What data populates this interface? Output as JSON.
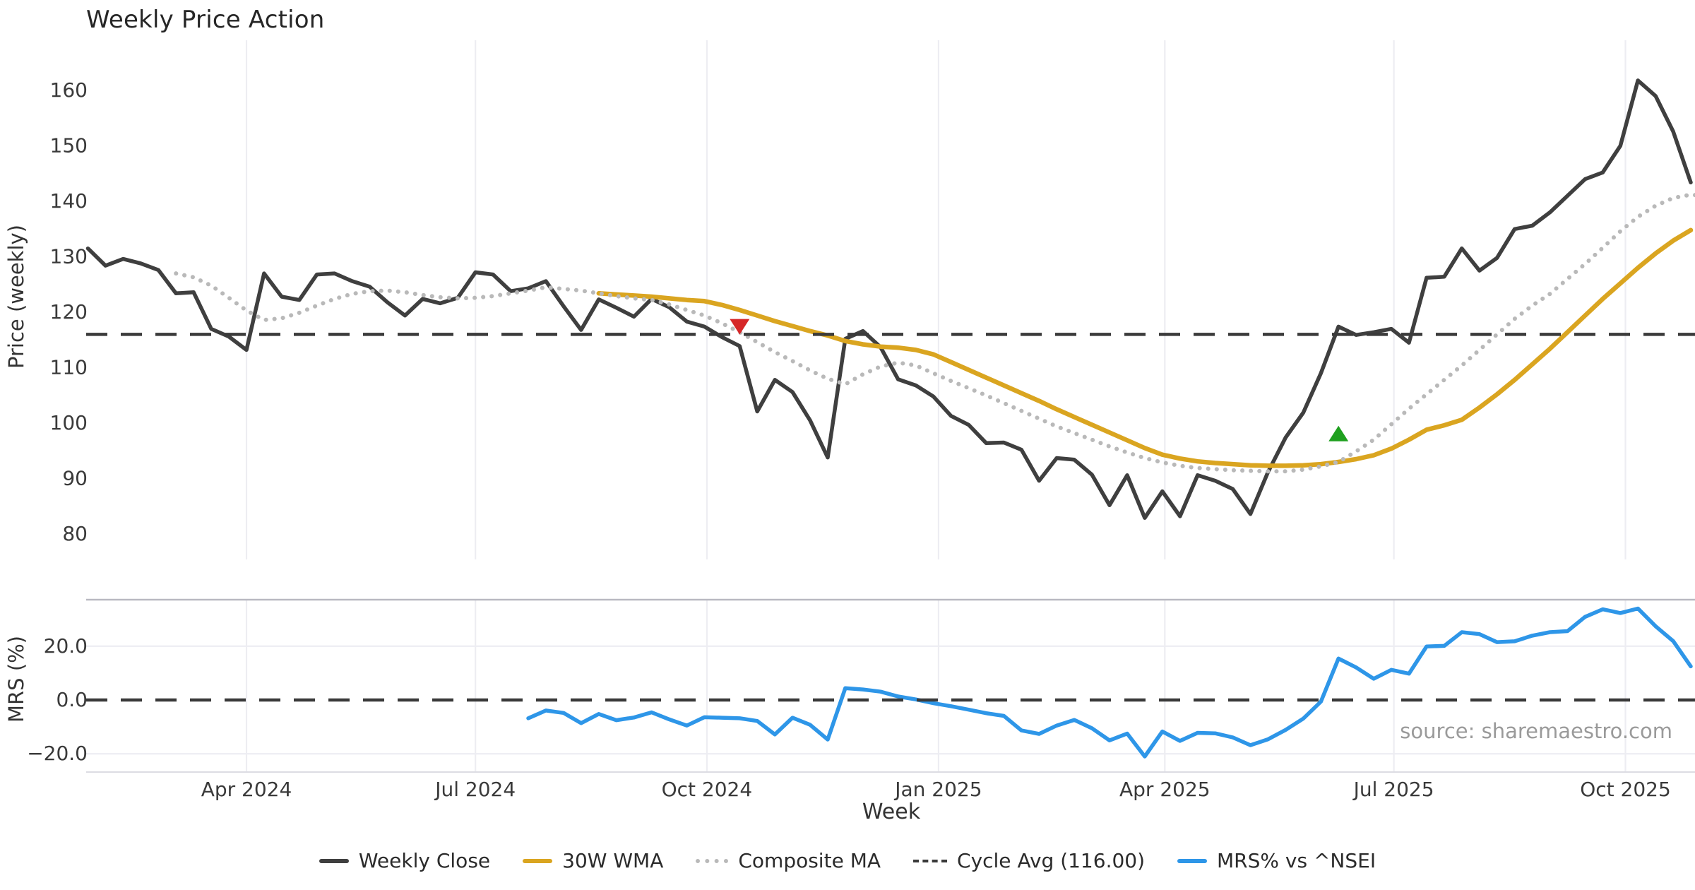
{
  "title": "Weekly Price Action",
  "source": "source: sharemaestro.com",
  "axes": {
    "price": {
      "label": "Price (weekly)",
      "ticks": [
        80,
        90,
        100,
        110,
        120,
        130,
        140,
        150,
        160
      ]
    },
    "mrs": {
      "label": "MRS (%)",
      "ticks": [
        -20,
        0,
        20
      ],
      "tick_labels": [
        "−20.0",
        "0.0",
        "20.0"
      ]
    },
    "x": {
      "label": "Week",
      "tick_labels": [
        "Apr 2024",
        "Jul 2024",
        "Oct 2024",
        "Jan 2025",
        "Apr 2025",
        "Jul 2025",
        "Oct 2025"
      ],
      "tick_weeks": [
        9,
        22,
        35.14,
        48.29,
        61.14,
        74.14,
        87.29
      ]
    }
  },
  "legend": [
    {
      "label": "Weekly Close",
      "color": "#3F3F3F",
      "style": "solid"
    },
    {
      "label": "30W WMA",
      "color": "#DAA520",
      "style": "solid"
    },
    {
      "label": "Composite MA",
      "color": "#B9B9B9",
      "style": "dotted"
    },
    {
      "label": "Cycle Avg (116.00)",
      "color": "#3A3A3A",
      "style": "dashed"
    },
    {
      "label": "MRS% vs ^NSEI",
      "color": "#2E96E8",
      "style": "solid"
    }
  ],
  "chart_data": {
    "type": "line",
    "x_unit": "week_index",
    "weeks_total": 92,
    "panels": [
      {
        "name": "price",
        "ylabel": "Price (weekly)",
        "ylim": [
          75.2,
          169.1
        ],
        "grid": "vertical"
      },
      {
        "name": "mrs",
        "ylabel": "MRS (%)",
        "ylim": [
          -26.8,
          37.3
        ],
        "grid": "both"
      }
    ],
    "series": [
      {
        "name": "Weekly Close",
        "panel": "price",
        "color": "#3F3F3F",
        "style": "solid",
        "width": 5.5,
        "start_week": 0,
        "values": [
          131.5,
          128.4,
          129.6,
          128.8,
          127.6,
          123.4,
          123.6,
          117.0,
          115.6,
          113.2,
          127.0,
          122.8,
          122.2,
          126.8,
          127.0,
          125.6,
          124.6,
          121.8,
          119.4,
          122.4,
          121.6,
          122.6,
          127.2,
          126.8,
          123.8,
          124.3,
          125.6,
          121.1,
          116.8,
          122.3,
          120.8,
          119.2,
          122.4,
          120.9,
          118.3,
          117.4,
          115.5,
          113.9,
          102.1,
          107.8,
          105.6,
          100.5,
          93.8,
          115.2,
          116.6,
          113.7,
          107.9,
          106.8,
          104.8,
          101.3,
          99.7,
          96.4,
          96.5,
          95.2,
          89.6,
          93.7,
          93.4,
          90.7,
          85.2,
          90.6,
          82.9,
          87.7,
          83.2,
          90.6,
          89.6,
          88.1,
          83.6,
          91.2,
          97.4,
          101.9,
          109.0,
          117.4,
          115.9,
          116.4,
          117.0,
          114.5,
          126.2,
          126.4,
          131.5,
          127.5,
          129.8,
          135.0,
          135.6,
          138.0,
          141.0,
          144.0,
          145.2,
          150.0,
          161.8,
          159.0,
          152.6,
          143.4
        ]
      },
      {
        "name": "30W WMA",
        "panel": "price",
        "color": "#DAA520",
        "style": "solid",
        "width": 6.5,
        "start_week": 29,
        "values": [
          123.4,
          123.2,
          123.0,
          122.8,
          122.5,
          122.2,
          122.0,
          121.3,
          120.4,
          119.4,
          118.4,
          117.5,
          116.6,
          115.8,
          114.8,
          114.2,
          113.8,
          113.6,
          113.2,
          112.4,
          111.0,
          109.6,
          108.2,
          106.8,
          105.4,
          104.0,
          102.5,
          101.1,
          99.7,
          98.3,
          96.9,
          95.5,
          94.3,
          93.6,
          93.1,
          92.8,
          92.6,
          92.4,
          92.3,
          92.3,
          92.4,
          92.6,
          93.0,
          93.5,
          94.2,
          95.4,
          97.0,
          98.8,
          99.6,
          100.6,
          102.8,
          105.2,
          107.8,
          110.6,
          113.4,
          116.4,
          119.4,
          122.4,
          125.2,
          128.0,
          130.6,
          132.9,
          134.8
        ]
      },
      {
        "name": "Composite MA",
        "panel": "price",
        "color": "#B9B9B9",
        "style": "dotted",
        "width": 5.5,
        "start_week": 5,
        "values": [
          127.0,
          126.3,
          124.8,
          122.6,
          120.3,
          118.6,
          118.9,
          119.9,
          121.2,
          122.4,
          123.3,
          123.8,
          123.9,
          123.6,
          123.1,
          122.7,
          122.5,
          122.6,
          122.9,
          123.4,
          123.9,
          124.5,
          124.2,
          123.9,
          123.4,
          122.9,
          122.5,
          122.2,
          121.4,
          120.4,
          119.4,
          118.0,
          116.4,
          114.6,
          112.8,
          111.2,
          109.5,
          108.0,
          107.0,
          108.8,
          110.2,
          110.9,
          110.4,
          109.0,
          107.6,
          106.3,
          105.0,
          103.6,
          102.2,
          100.8,
          99.4,
          98.2,
          97.0,
          95.8,
          94.7,
          93.7,
          92.9,
          92.3,
          91.9,
          91.7,
          91.5,
          91.4,
          91.3,
          91.3,
          91.6,
          92.2,
          93.0,
          94.9,
          97.0,
          99.8,
          102.6,
          105.2,
          107.8,
          110.4,
          113.2,
          116.0,
          118.8,
          121.2,
          123.3,
          126.0,
          128.7,
          131.6,
          134.6,
          137.2,
          139.2,
          140.6,
          141.2,
          140.9
        ]
      },
      {
        "name": "Cycle Avg",
        "panel": "price",
        "color": "#3A3A3A",
        "style": "dashed",
        "width": 4.5,
        "constant": 116.0
      },
      {
        "name": "MRS% vs ^NSEI",
        "panel": "mrs",
        "color": "#2E96E8",
        "style": "solid",
        "width": 5.5,
        "start_week": 25,
        "values": [
          -6.8,
          -3.9,
          -4.8,
          -8.6,
          -5.2,
          -7.5,
          -6.5,
          -4.6,
          -7.2,
          -9.5,
          -6.4,
          -6.6,
          -6.8,
          -7.8,
          -12.8,
          -6.6,
          -9.2,
          -14.7,
          4.4,
          3.9,
          3.1,
          1.3,
          0.2,
          -1.2,
          -2.3,
          -3.6,
          -4.9,
          -5.9,
          -11.3,
          -12.6,
          -9.5,
          -7.4,
          -10.5,
          -15.0,
          -12.5,
          -21.0,
          -11.7,
          -15.2,
          -12.2,
          -12.4,
          -13.9,
          -16.8,
          -14.6,
          -11.1,
          -6.9,
          -0.6,
          15.4,
          12.1,
          7.9,
          11.2,
          9.8,
          19.9,
          20.1,
          25.2,
          24.5,
          21.5,
          21.8,
          23.9,
          25.2,
          25.6,
          30.9,
          33.7,
          32.3,
          34.0,
          27.4,
          21.9,
          12.5
        ]
      },
      {
        "name": "Zero Line",
        "panel": "mrs",
        "color": "#3A3A3A",
        "style": "dashed",
        "width": 4.5,
        "constant": 0.0
      }
    ],
    "markers": [
      {
        "name": "sell-signal",
        "shape": "triangle-down",
        "color": "#D62728",
        "panel": "price",
        "week": 37,
        "value": 117.5
      },
      {
        "name": "buy-signal",
        "shape": "triangle-up",
        "color": "#1FA01F",
        "panel": "price",
        "week": 71,
        "value": 98.0
      }
    ],
    "cycle_avg": 116.0
  }
}
